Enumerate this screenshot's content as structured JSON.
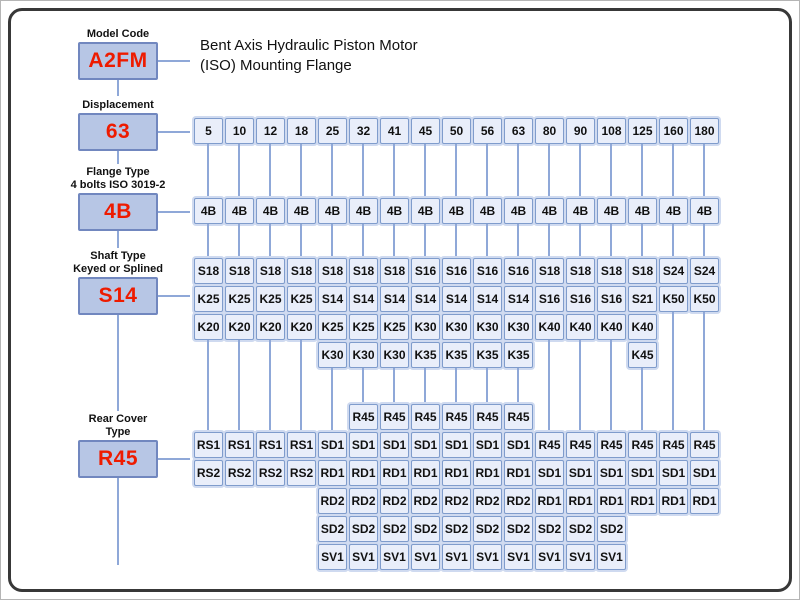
{
  "title": {
    "line1": "Bent Axis Hydraulic Piston Motor",
    "line2": "(ISO) Mounting Flange"
  },
  "colors": {
    "accent_red": "#ee1b00",
    "connector_blue": "#8fa8d8",
    "selector_fill": "#b7c6e5",
    "selector_border": "#7187bf",
    "option_fill": "#e9eefa",
    "option_border": "#7f9ccc",
    "frame": "#383838"
  },
  "selectors": [
    {
      "label": "Model Code",
      "label2": "",
      "value": "A2FM"
    },
    {
      "label": "Displacement",
      "label2": "",
      "value": "63"
    },
    {
      "label": "Flange Type",
      "label2": "4 bolts ISO 3019-2",
      "value": "4B"
    },
    {
      "label": "Shaft Type",
      "label2": "Keyed or Splined",
      "value": "S14"
    },
    {
      "label": "Rear Cover",
      "label2": "Type",
      "value": "R45"
    }
  ],
  "columns": [
    {
      "d": "5",
      "f": "4B",
      "shaft": [
        "S18",
        "K25",
        "K20"
      ],
      "rear": {
        "start": 2,
        "cells": [
          "RS1",
          "RS2"
        ]
      }
    },
    {
      "d": "10",
      "f": "4B",
      "shaft": [
        "S18",
        "K25",
        "K20"
      ],
      "rear": {
        "start": 2,
        "cells": [
          "RS1",
          "RS2"
        ]
      }
    },
    {
      "d": "12",
      "f": "4B",
      "shaft": [
        "S18",
        "K25",
        "K20"
      ],
      "rear": {
        "start": 2,
        "cells": [
          "RS1",
          "RS2"
        ]
      }
    },
    {
      "d": "18",
      "f": "4B",
      "shaft": [
        "S18",
        "K25",
        "K20"
      ],
      "rear": {
        "start": 2,
        "cells": [
          "RS1",
          "RS2"
        ]
      }
    },
    {
      "d": "25",
      "f": "4B",
      "shaft": [
        "S18",
        "S14",
        "K25",
        "K30"
      ],
      "rear": {
        "start": 2,
        "cells": [
          "SD1",
          "RD1",
          "RD2",
          "SD2",
          "SV1"
        ]
      }
    },
    {
      "d": "32",
      "f": "4B",
      "shaft": [
        "S18",
        "S14",
        "K25",
        "K30"
      ],
      "rear": {
        "start": 1,
        "cells": [
          "R45",
          "SD1",
          "RD1",
          "RD2",
          "SD2",
          "SV1"
        ]
      }
    },
    {
      "d": "41",
      "f": "4B",
      "shaft": [
        "S18",
        "S14",
        "K25",
        "K30"
      ],
      "rear": {
        "start": 1,
        "cells": [
          "R45",
          "SD1",
          "RD1",
          "RD2",
          "SD2",
          "SV1"
        ]
      }
    },
    {
      "d": "45",
      "f": "4B",
      "shaft": [
        "S16",
        "S14",
        "K30",
        "K35"
      ],
      "rear": {
        "start": 1,
        "cells": [
          "R45",
          "SD1",
          "RD1",
          "RD2",
          "SD2",
          "SV1"
        ]
      }
    },
    {
      "d": "50",
      "f": "4B",
      "shaft": [
        "S16",
        "S14",
        "K30",
        "K35"
      ],
      "rear": {
        "start": 1,
        "cells": [
          "R45",
          "SD1",
          "RD1",
          "RD2",
          "SD2",
          "SV1"
        ]
      }
    },
    {
      "d": "56",
      "f": "4B",
      "shaft": [
        "S16",
        "S14",
        "K30",
        "K35"
      ],
      "rear": {
        "start": 1,
        "cells": [
          "R45",
          "SD1",
          "RD1",
          "RD2",
          "SD2",
          "SV1"
        ]
      }
    },
    {
      "d": "63",
      "f": "4B",
      "shaft": [
        "S16",
        "S14",
        "K30",
        "K35"
      ],
      "rear": {
        "start": 1,
        "cells": [
          "R45",
          "SD1",
          "RD1",
          "RD2",
          "SD2",
          "SV1"
        ]
      }
    },
    {
      "d": "80",
      "f": "4B",
      "shaft": [
        "S18",
        "S16",
        "K40"
      ],
      "rear": {
        "start": 2,
        "cells": [
          "R45",
          "SD1",
          "RD1",
          "SD2",
          "SV1"
        ]
      }
    },
    {
      "d": "90",
      "f": "4B",
      "shaft": [
        "S18",
        "S16",
        "K40"
      ],
      "rear": {
        "start": 2,
        "cells": [
          "R45",
          "SD1",
          "RD1",
          "SD2",
          "SV1"
        ]
      }
    },
    {
      "d": "108",
      "f": "4B",
      "shaft": [
        "S18",
        "S16",
        "K40"
      ],
      "rear": {
        "start": 2,
        "cells": [
          "R45",
          "SD1",
          "RD1",
          "SD2",
          "SV1"
        ]
      }
    },
    {
      "d": "125",
      "f": "4B",
      "shaft": [
        "S18",
        "S21",
        "K40",
        "K45"
      ],
      "rear": {
        "start": 2,
        "cells": [
          "R45",
          "SD1",
          "RD1"
        ]
      }
    },
    {
      "d": "160",
      "f": "4B",
      "shaft": [
        "S24",
        "K50"
      ],
      "rear": {
        "start": 2,
        "cells": [
          "R45",
          "SD1",
          "RD1"
        ]
      }
    },
    {
      "d": "180",
      "f": "4B",
      "shaft": [
        "S24",
        "K50"
      ],
      "rear": {
        "start": 2,
        "cells": [
          "R45",
          "SD1",
          "RD1"
        ]
      }
    }
  ]
}
